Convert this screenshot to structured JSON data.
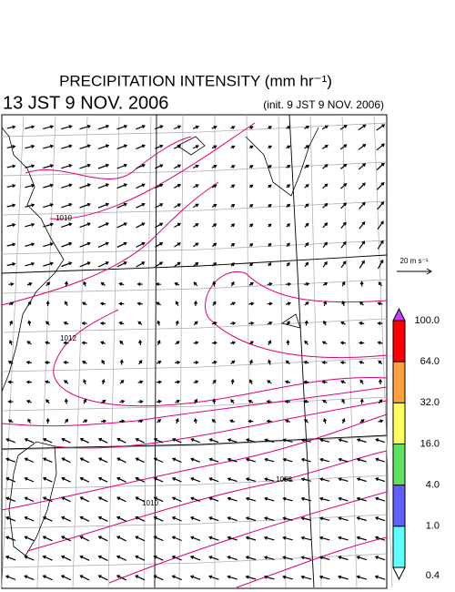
{
  "header": {
    "title": "PRECIPITATION INTENSITY (mm hr⁻¹)",
    "valid_time": "13 JST 9 NOV. 2006",
    "init_time": "(init. 9 JST 9 NOV. 2006)"
  },
  "wind_scale": {
    "label": "20 m s⁻¹"
  },
  "colorbar": {
    "labels": [
      "100.0",
      "64.0",
      "32.0",
      "16.0",
      "4.0",
      "1.0",
      "0.4"
    ],
    "colors": [
      "#c040ff",
      "#ff0000",
      "#ffa040",
      "#ffff60",
      "#60e060",
      "#6060ff",
      "#60ffff",
      "#ffffff"
    ]
  },
  "contours": {
    "labels": [
      "1010",
      "1012",
      "1008",
      "1010"
    ]
  }
}
